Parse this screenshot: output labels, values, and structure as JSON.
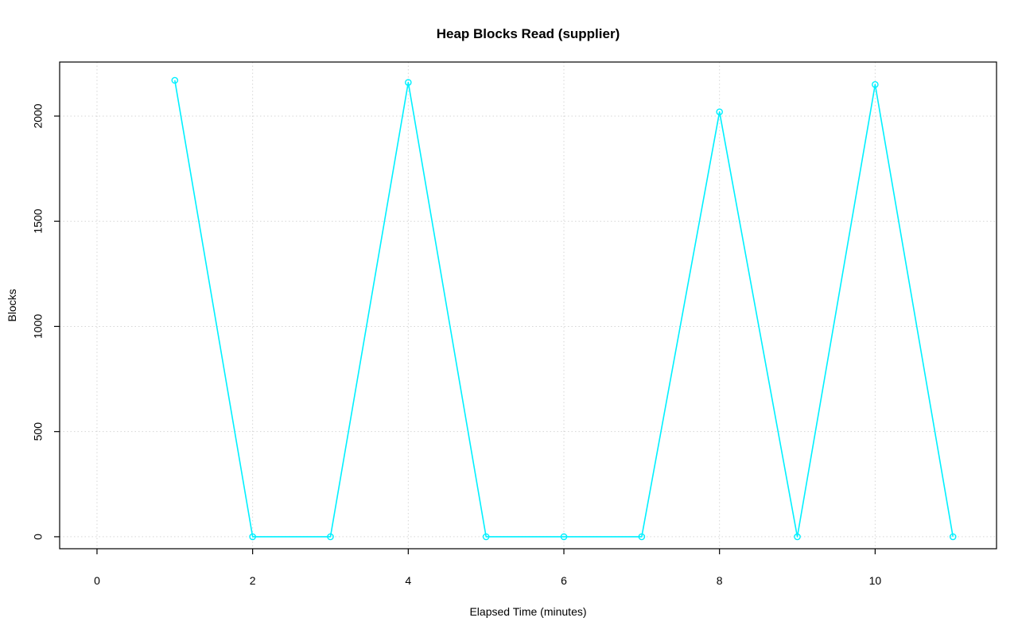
{
  "chart_data": {
    "type": "line",
    "title": "Heap Blocks Read (supplier)",
    "xlabel": "Elapsed Time (minutes)",
    "ylabel": "Blocks",
    "x": [
      1,
      2,
      3,
      4,
      5,
      6,
      7,
      8,
      9,
      10,
      11
    ],
    "y": [
      2170,
      0,
      0,
      2160,
      0,
      0,
      0,
      2020,
      0,
      2150,
      0
    ],
    "xticks": [
      0,
      2,
      4,
      6,
      8,
      10
    ],
    "yticks": [
      0,
      500,
      1000,
      1500,
      2000
    ],
    "xtick_labels": [
      "0",
      "2",
      "4",
      "6",
      "8",
      "10"
    ],
    "ytick_labels": [
      "0",
      "500",
      "1000",
      "1500",
      "2000"
    ],
    "xlim": [
      -0.48,
      11.56
    ],
    "ylim": [
      -57,
      2257
    ],
    "grid": true,
    "legend_position": "none",
    "line_color": "#00f0ff",
    "marker": "open-circle",
    "grid_color": "#d6d6d6",
    "frame_color": "#000000",
    "background_color": "#ffffff"
  }
}
